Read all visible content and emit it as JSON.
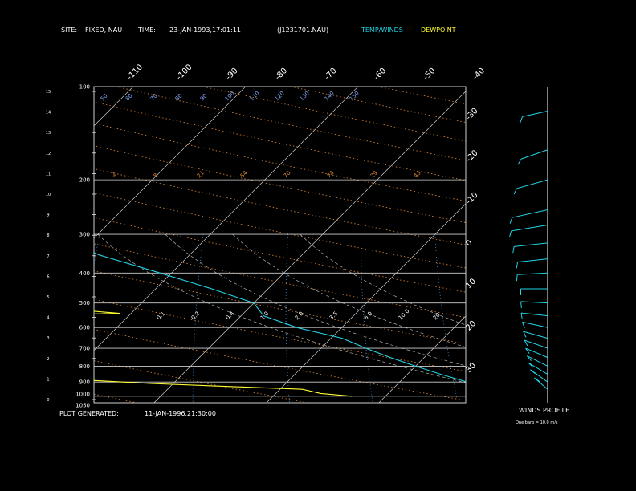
{
  "header": {
    "site_label": "SITE:",
    "site_value": "FIXED, NAU",
    "time_label": "TIME:",
    "time_value": "23-JAN-1993,17:01:11",
    "file_value": "(J1231701.NAU)",
    "legend_temp": "TEMP/WINDS",
    "legend_dew": "DEWPOINT"
  },
  "footer": {
    "plot_generated_label": "PLOT GENERATED:",
    "plot_generated_value": "11-JAN-1996,21:30:00",
    "winds_title": "WINDS PROFILE",
    "winds_note": "One barb = 10.0 m/s"
  },
  "colors": {
    "temp": "#22d4e6",
    "dewpoint": "#ffff33",
    "isobar": "#cfcfcf",
    "isotherm": "#cfcfcf",
    "dry_adiabat": "#e08a3a",
    "moist_adiabat": "#d8a060",
    "mixing_ratio": "#3a8fd0",
    "wind": "#22d4e6"
  },
  "chart_data": {
    "type": "line",
    "diagram": "skew-T log-P",
    "pressure_ticks": [
      "100",
      "200",
      "300",
      "400",
      "500",
      "600",
      "700",
      "800",
      "900",
      "1000",
      "1050"
    ],
    "height_ticks": [
      "15",
      "14",
      "13",
      "12",
      "11",
      "10",
      "9",
      "8",
      "7",
      "6",
      "5",
      "4",
      "3",
      "2",
      "1",
      "0"
    ],
    "top_temp_labels": [
      "-110",
      "-100",
      "-90",
      "-80",
      "-70",
      "-60",
      "-50",
      "-40"
    ],
    "right_temp_labels": [
      "-30",
      "-20",
      "-10",
      "0",
      "10",
      "20",
      "30"
    ],
    "dry_adiabat_labels": [
      "-2",
      "8",
      "21",
      "54",
      "70",
      "74",
      "29",
      "43"
    ],
    "mixing_ratio_labels": [
      "0.1",
      "0.2",
      "0.4",
      "1.0",
      "2.0",
      "3.5",
      "6.0",
      "10.0",
      "20"
    ],
    "moist_adiabat_labels": [
      "50",
      "60",
      "70",
      "80",
      "90",
      "100",
      "110",
      "120",
      "130",
      "140",
      "150"
    ],
    "series": [
      {
        "name": "TEMP/WINDS",
        "points": [
          [
            100,
            -75
          ],
          [
            120,
            -73
          ],
          [
            150,
            -63
          ],
          [
            200,
            -58
          ],
          [
            250,
            -52
          ],
          [
            300,
            -44
          ],
          [
            350,
            -38
          ],
          [
            400,
            -31
          ],
          [
            450,
            -25
          ],
          [
            500,
            -20
          ],
          [
            550,
            -18
          ],
          [
            600,
            -14
          ],
          [
            650,
            -9
          ],
          [
            700,
            -6
          ],
          [
            750,
            -3
          ],
          [
            800,
            0
          ],
          [
            850,
            3
          ],
          [
            900,
            6
          ],
          [
            950,
            9
          ],
          [
            1000,
            12
          ]
        ]
      },
      {
        "name": "DEWPOINT",
        "points": [
          [
            100,
            -85
          ],
          [
            130,
            -82
          ],
          [
            160,
            -80
          ],
          [
            200,
            -80
          ],
          [
            240,
            -78
          ],
          [
            270,
            -78
          ],
          [
            290,
            -64
          ],
          [
            300,
            -65
          ],
          [
            320,
            -64
          ],
          [
            340,
            -67
          ],
          [
            360,
            -58
          ],
          [
            380,
            -63
          ],
          [
            400,
            -55
          ],
          [
            430,
            -55
          ],
          [
            460,
            -48
          ],
          [
            490,
            -46
          ],
          [
            520,
            -37
          ],
          [
            540,
            -31
          ],
          [
            560,
            -50
          ],
          [
            600,
            -50
          ],
          [
            640,
            -38
          ],
          [
            660,
            -45
          ],
          [
            680,
            -38
          ],
          [
            700,
            -44
          ],
          [
            720,
            -38
          ],
          [
            740,
            -52
          ],
          [
            760,
            -40
          ],
          [
            800,
            -34
          ],
          [
            820,
            -39
          ],
          [
            850,
            -28
          ],
          [
            880,
            -30
          ],
          [
            910,
            -22
          ],
          [
            950,
            -8
          ],
          [
            980,
            -6
          ],
          [
            1000,
            -3
          ]
        ]
      }
    ],
    "winds": [
      {
        "p": 120,
        "speed": 15,
        "dir": 290
      },
      {
        "p": 160,
        "speed": 20,
        "dir": 300
      },
      {
        "p": 200,
        "speed": 25,
        "dir": 295
      },
      {
        "p": 250,
        "speed": 30,
        "dir": 290
      },
      {
        "p": 280,
        "speed": 30,
        "dir": 285
      },
      {
        "p": 320,
        "speed": 25,
        "dir": 280
      },
      {
        "p": 360,
        "speed": 20,
        "dir": 280
      },
      {
        "p": 400,
        "speed": 20,
        "dir": 275
      },
      {
        "p": 450,
        "speed": 15,
        "dir": 270
      },
      {
        "p": 500,
        "speed": 15,
        "dir": 265
      },
      {
        "p": 550,
        "speed": 15,
        "dir": 260
      },
      {
        "p": 600,
        "speed": 15,
        "dir": 250
      },
      {
        "p": 650,
        "speed": 15,
        "dir": 245
      },
      {
        "p": 700,
        "speed": 15,
        "dir": 240
      },
      {
        "p": 750,
        "speed": 15,
        "dir": 235
      },
      {
        "p": 800,
        "speed": 15,
        "dir": 230
      },
      {
        "p": 850,
        "speed": 15,
        "dir": 225
      },
      {
        "p": 900,
        "speed": 15,
        "dir": 220
      },
      {
        "p": 950,
        "speed": 10,
        "dir": 215
      }
    ]
  }
}
